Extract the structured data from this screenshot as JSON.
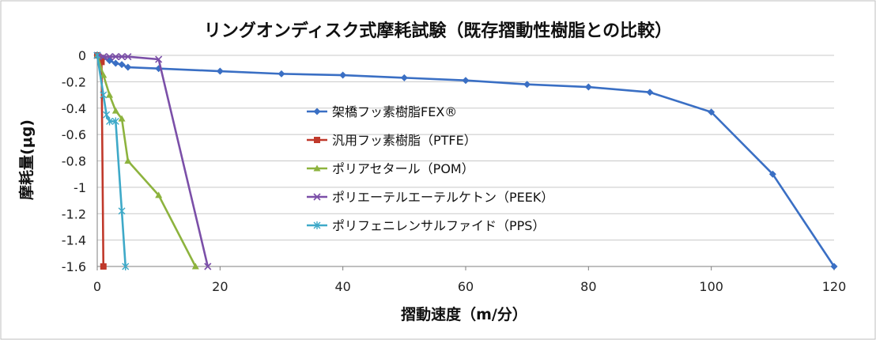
{
  "chart_data": {
    "type": "line",
    "title": "リングオンディスク式摩耗試験（既存摺動性樹脂との比較）",
    "xlabel": "摺動速度（m/分）",
    "ylabel": "摩耗量(μg)",
    "xlim": [
      0,
      120
    ],
    "ylim": [
      -1.6,
      0
    ],
    "x_ticks": [
      "0",
      "20",
      "40",
      "60",
      "80",
      "100",
      "120"
    ],
    "y_ticks": [
      "0",
      "-0.2",
      "-0.4",
      "-0.6",
      "-0.8",
      "-1",
      "-1.2",
      "-1.4",
      "-1.6"
    ],
    "grid": true,
    "legend_position": "center-left",
    "series": [
      {
        "name": "架橋フッ素樹脂FEX®",
        "color": "#3a6fc4",
        "marker": "diamond",
        "points": [
          [
            0,
            0
          ],
          [
            1,
            -0.02
          ],
          [
            2,
            -0.04
          ],
          [
            3,
            -0.06
          ],
          [
            4,
            -0.07
          ],
          [
            5,
            -0.09
          ],
          [
            10,
            -0.1
          ],
          [
            20,
            -0.12
          ],
          [
            30,
            -0.14
          ],
          [
            40,
            -0.15
          ],
          [
            50,
            -0.17
          ],
          [
            60,
            -0.19
          ],
          [
            70,
            -0.22
          ],
          [
            80,
            -0.24
          ],
          [
            90,
            -0.28
          ],
          [
            100,
            -0.43
          ],
          [
            110,
            -0.9
          ],
          [
            120,
            -1.6
          ]
        ]
      },
      {
        "name": "汎用フッ素樹脂（PTFE）",
        "color": "#c0392b",
        "marker": "square",
        "points": [
          [
            0,
            0
          ],
          [
            0.5,
            -0.02
          ],
          [
            0.7,
            -0.05
          ],
          [
            1,
            -1.6
          ]
        ]
      },
      {
        "name": "ポリアセタール（POM）",
        "color": "#8db33e",
        "marker": "triangle",
        "points": [
          [
            0,
            0
          ],
          [
            1,
            -0.15
          ],
          [
            2,
            -0.3
          ],
          [
            3,
            -0.42
          ],
          [
            4,
            -0.48
          ],
          [
            5,
            -0.8
          ],
          [
            10,
            -1.06
          ],
          [
            16,
            -1.6
          ]
        ]
      },
      {
        "name": "ポリエーテルエーテルケトン（PEEK）",
        "color": "#7b4fa8",
        "marker": "x",
        "points": [
          [
            0,
            0
          ],
          [
            1,
            -0.01
          ],
          [
            2,
            -0.01
          ],
          [
            3,
            -0.01
          ],
          [
            4,
            -0.01
          ],
          [
            5,
            -0.01
          ],
          [
            10,
            -0.03
          ],
          [
            18,
            -1.6
          ]
        ]
      },
      {
        "name": "ポリフェニレンサルファイド（PPS）",
        "color": "#3ea9c8",
        "marker": "star",
        "points": [
          [
            0,
            0
          ],
          [
            1,
            -0.3
          ],
          [
            1.5,
            -0.45
          ],
          [
            2,
            -0.5
          ],
          [
            3,
            -0.5
          ],
          [
            4,
            -1.18
          ],
          [
            4.6,
            -1.6
          ]
        ]
      }
    ]
  }
}
